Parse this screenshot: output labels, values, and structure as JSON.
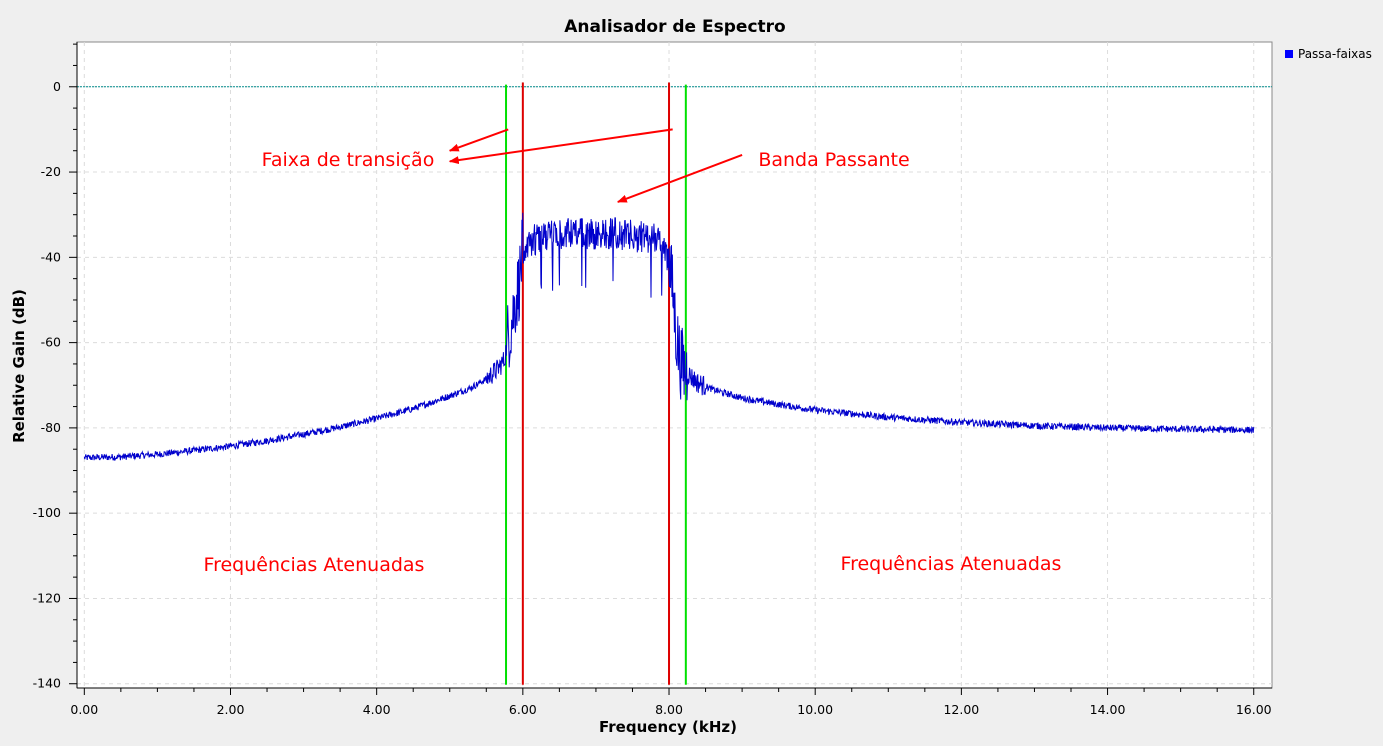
{
  "chart_data": {
    "type": "line",
    "title": "Analisador de Espectro",
    "xlabel": "Frequency (kHz)",
    "ylabel": "Relative Gain (dB)",
    "xlim": [
      -0.1,
      16.25
    ],
    "ylim": [
      -141,
      10.5
    ],
    "x_ticks": [
      0,
      2,
      4,
      6,
      8,
      10,
      12,
      14,
      16
    ],
    "x_tick_labels": [
      "0.00",
      "2.00",
      "4.00",
      "6.00",
      "8.00",
      "10.00",
      "12.00",
      "14.00",
      "16.00"
    ],
    "y_ticks": [
      0,
      -20,
      -40,
      -60,
      -80,
      -100,
      -120,
      -140
    ],
    "y_tick_labels": [
      "0",
      "-20",
      "-40",
      "-60",
      "-80",
      "-100",
      "-120",
      "-140"
    ],
    "grid": true,
    "legend_position": "top-right",
    "series": [
      {
        "name": "Passa-faixas",
        "color": "#0000cc",
        "x": [
          0.0,
          0.5,
          1.0,
          1.5,
          2.0,
          2.5,
          3.0,
          3.5,
          4.0,
          4.5,
          5.0,
          5.3,
          5.5,
          5.65,
          5.75,
          5.8,
          5.85,
          5.9,
          5.95,
          6.0,
          6.1,
          6.3,
          6.5,
          6.7,
          7.0,
          7.3,
          7.5,
          7.7,
          7.9,
          8.0,
          8.05,
          8.1,
          8.15,
          8.2,
          8.25,
          8.3,
          8.4,
          8.6,
          9.0,
          9.5,
          10.0,
          11.0,
          12.0,
          13.0,
          14.0,
          15.0,
          16.0
        ],
        "values": [
          -87,
          -86.8,
          -86.2,
          -85.3,
          -84.3,
          -83,
          -81.5,
          -79.8,
          -77.8,
          -75.5,
          -72.5,
          -70.5,
          -68.5,
          -66.3,
          -64,
          -58,
          -55,
          -50,
          -46,
          -38,
          -36,
          -35,
          -34.5,
          -34,
          -34,
          -34,
          -34.5,
          -35,
          -36,
          -40,
          -48,
          -58,
          -64,
          -66,
          -67,
          -68,
          -69.5,
          -71,
          -73,
          -74.5,
          -75.8,
          -77.5,
          -78.7,
          -79.5,
          -80,
          -80.3,
          -80.5
        ]
      }
    ],
    "transition_lines": {
      "color": "#00e000",
      "x": [
        5.77,
        8.23
      ]
    },
    "passband_lines": {
      "color": "#dd0000",
      "x": [
        6.0,
        8.0
      ]
    },
    "reference_line": {
      "y": 0,
      "color": "#008b8b"
    },
    "annotations": [
      {
        "text": "Faixa de transição",
        "x": 4.2,
        "y": -17
      },
      {
        "text": "Banda Passante",
        "x": 9.8,
        "y": -16.8
      },
      {
        "text": "Frequências Atenuadas",
        "x": 3.15,
        "y": -113.6
      },
      {
        "text": "Frequências Atenuadas",
        "x": 11.85,
        "y": -113.4
      }
    ],
    "annotation_color": "#ff0000"
  }
}
